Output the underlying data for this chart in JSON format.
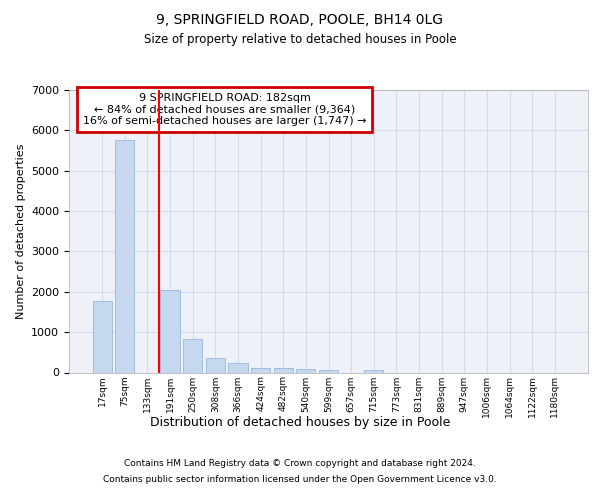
{
  "title1": "9, SPRINGFIELD ROAD, POOLE, BH14 0LG",
  "title2": "Size of property relative to detached houses in Poole",
  "xlabel": "Distribution of detached houses by size in Poole",
  "ylabel": "Number of detached properties",
  "bar_labels": [
    "17sqm",
    "75sqm",
    "133sqm",
    "191sqm",
    "250sqm",
    "308sqm",
    "366sqm",
    "424sqm",
    "482sqm",
    "540sqm",
    "599sqm",
    "657sqm",
    "715sqm",
    "773sqm",
    "831sqm",
    "889sqm",
    "947sqm",
    "1006sqm",
    "1064sqm",
    "1122sqm",
    "1180sqm"
  ],
  "bar_values": [
    1780,
    5750,
    0,
    2050,
    820,
    370,
    230,
    115,
    110,
    85,
    60,
    0,
    50,
    0,
    0,
    0,
    0,
    0,
    0,
    0,
    0
  ],
  "bar_color": "#c5d8f0",
  "bar_edge_color": "#8ab0d8",
  "grid_color": "#d0dced",
  "bg_color": "#eef2f8",
  "red_line_x": 2.5,
  "annotation_text": "9 SPRINGFIELD ROAD: 182sqm\n← 84% of detached houses are smaller (9,364)\n16% of semi-detached houses are larger (1,747) →",
  "annotation_box_edgecolor": "#cc0000",
  "ylim": [
    0,
    7000
  ],
  "yticks": [
    0,
    1000,
    2000,
    3000,
    4000,
    5000,
    6000,
    7000
  ],
  "footer1": "Contains HM Land Registry data © Crown copyright and database right 2024.",
  "footer2": "Contains public sector information licensed under the Open Government Licence v3.0."
}
